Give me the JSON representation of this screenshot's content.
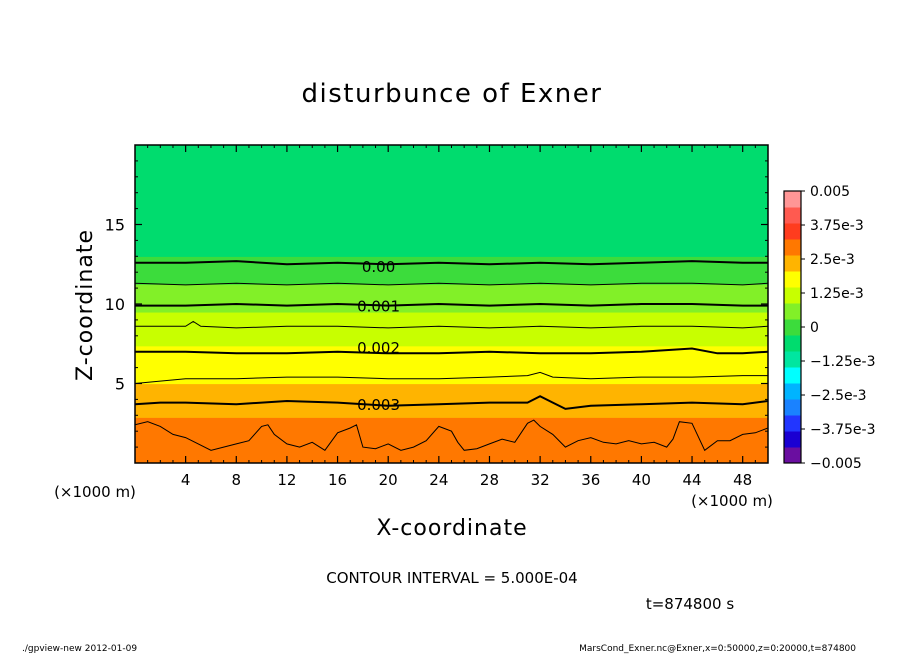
{
  "chart_data": {
    "type": "heatmap",
    "title": "disturbunce of Exner",
    "xlabel": "X-coordinate",
    "ylabel": "Z-coordinate",
    "x_unit_left": "(×1000 m)",
    "x_unit_right": "(×1000 m)",
    "xlim": [
      0,
      50
    ],
    "ylim": [
      0,
      20
    ],
    "x_ticks": [
      4,
      8,
      12,
      16,
      20,
      24,
      28,
      32,
      36,
      40,
      44,
      48
    ],
    "x_tick_labels": [
      "4",
      "8",
      "12",
      "16",
      "20",
      "24",
      "28",
      "32",
      "36",
      "40",
      "44",
      "48"
    ],
    "y_ticks": [
      5,
      10,
      15
    ],
    "y_tick_labels": [
      "5",
      "10",
      "15"
    ],
    "contour_interval_text": "CONTOUR INTERVAL = 5.000E-04",
    "time_text": "t=874800 s",
    "contour_labels": [
      {
        "text": "0.00",
        "x": 17.5,
        "z": 12.4
      },
      {
        "text": "0.001",
        "x": 17.5,
        "z": 9.9
      },
      {
        "text": "0.002",
        "x": 17.5,
        "z": 7.3
      },
      {
        "text": "0.003",
        "x": 17.5,
        "z": 3.7
      }
    ],
    "contours": [
      {
        "value": 0.0,
        "x": [
          0,
          4,
          8,
          12,
          16,
          20,
          24,
          28,
          32,
          36,
          40,
          44,
          48,
          50
        ],
        "z": [
          12.6,
          12.6,
          12.7,
          12.5,
          12.6,
          12.5,
          12.6,
          12.5,
          12.6,
          12.5,
          12.6,
          12.7,
          12.6,
          12.6
        ]
      },
      {
        "value": 0.0005,
        "x": [
          0,
          4,
          8,
          12,
          16,
          20,
          24,
          28,
          32,
          36,
          40,
          44,
          48,
          50
        ],
        "z": [
          11.3,
          11.2,
          11.3,
          11.2,
          11.3,
          11.2,
          11.3,
          11.2,
          11.3,
          11.2,
          11.3,
          11.3,
          11.2,
          11.3
        ]
      },
      {
        "value": 0.001,
        "x": [
          0,
          4,
          8,
          12,
          16,
          20,
          24,
          28,
          32,
          36,
          40,
          44,
          48,
          50
        ],
        "z": [
          9.9,
          9.9,
          10.0,
          9.9,
          10.0,
          9.9,
          10.0,
          9.9,
          10.0,
          9.9,
          10.0,
          10.0,
          9.9,
          9.9
        ]
      },
      {
        "value": 0.0015,
        "x": [
          0,
          4,
          4.6,
          5.2,
          8,
          12,
          16,
          20,
          24,
          28,
          32,
          36,
          40,
          44,
          48,
          50
        ],
        "z": [
          8.6,
          8.6,
          8.9,
          8.6,
          8.5,
          8.6,
          8.6,
          8.5,
          8.6,
          8.5,
          8.6,
          8.5,
          8.6,
          8.6,
          8.5,
          8.6
        ]
      },
      {
        "value": 0.002,
        "x": [
          0,
          4,
          8,
          12,
          16,
          20,
          24,
          28,
          32,
          36,
          40,
          44,
          46,
          48,
          50
        ],
        "z": [
          7.0,
          7.0,
          6.9,
          6.9,
          7.0,
          6.9,
          6.9,
          7.0,
          6.9,
          6.9,
          7.0,
          7.2,
          6.9,
          6.9,
          7.0
        ]
      },
      {
        "value": 0.0025,
        "x": [
          0,
          4,
          8,
          12,
          16,
          20,
          24,
          28,
          31,
          32,
          33,
          36,
          40,
          44,
          48,
          50
        ],
        "z": [
          5.0,
          5.3,
          5.3,
          5.4,
          5.4,
          5.3,
          5.3,
          5.4,
          5.5,
          5.7,
          5.4,
          5.3,
          5.4,
          5.4,
          5.5,
          5.5
        ]
      },
      {
        "value": 0.003,
        "x": [
          0,
          2,
          4,
          8,
          12,
          16,
          20,
          24,
          28,
          31,
          32,
          33,
          34,
          36,
          40,
          44,
          48,
          50
        ],
        "z": [
          3.7,
          3.8,
          3.8,
          3.7,
          3.9,
          3.8,
          3.6,
          3.7,
          3.8,
          3.8,
          4.2,
          3.8,
          3.4,
          3.6,
          3.7,
          3.8,
          3.7,
          3.9
        ]
      },
      {
        "value": 0.0035,
        "x": [
          0,
          1,
          2,
          3,
          4,
          5,
          6,
          7,
          8,
          9,
          10,
          10.5,
          11,
          12,
          13,
          14,
          15,
          16,
          17,
          17.5,
          18,
          19,
          20,
          21,
          22,
          23,
          24,
          25,
          25.5,
          26,
          27,
          28,
          29,
          30,
          31,
          31.5,
          32,
          33,
          34,
          35,
          36,
          37,
          38,
          39,
          40,
          41,
          42,
          42.5,
          43,
          44,
          45,
          46,
          47,
          48,
          49,
          50
        ],
        "z": [
          2.4,
          2.6,
          2.3,
          1.8,
          1.6,
          1.2,
          0.8,
          1.0,
          1.2,
          1.4,
          2.3,
          2.4,
          1.8,
          1.2,
          1.0,
          1.3,
          0.8,
          1.9,
          2.2,
          2.4,
          1.0,
          0.9,
          1.2,
          0.8,
          1.0,
          1.4,
          2.3,
          2.0,
          1.3,
          0.8,
          0.9,
          1.2,
          1.5,
          1.3,
          2.5,
          2.7,
          2.3,
          1.8,
          1.0,
          1.4,
          1.6,
          1.3,
          1.2,
          1.4,
          1.2,
          1.3,
          1.0,
          1.5,
          2.6,
          2.5,
          0.8,
          1.4,
          1.4,
          1.8,
          1.9,
          2.2
        ]
      }
    ],
    "colorbar": {
      "levels": [
        -0.005,
        -0.004375,
        -0.00375,
        -0.003125,
        -0.0025,
        -0.001875,
        -0.00125,
        -0.000625,
        0,
        0.000625,
        0.00125,
        0.001875,
        0.0025,
        0.003125,
        0.00375,
        0.004375,
        0.005
      ],
      "colors": [
        "#6a0ea0",
        "#1a00d2",
        "#2236ff",
        "#1a82ff",
        "#00b4ff",
        "#00ffff",
        "#00e6a0",
        "#00dc6e",
        "#3cdc3c",
        "#82f028",
        "#c8ff00",
        "#ffff00",
        "#ffb400",
        "#ff7800",
        "#ff3c1e",
        "#ff5a50",
        "#ff9696"
      ],
      "tick_labels": [
        "0.005",
        "3.75e-3",
        "2.5e-3",
        "1.25e-3",
        "0",
        "−1.25e-3",
        "−2.5e-3",
        "−3.75e-3",
        "−0.005"
      ],
      "tick_values": [
        0.005,
        0.00375,
        0.0025,
        0.00125,
        0,
        -0.00125,
        -0.0025,
        -0.00375,
        -0.005
      ]
    },
    "field_profile": {
      "z": [
        0,
        1,
        2,
        3,
        4,
        5,
        6,
        7,
        8,
        9,
        10,
        11,
        12,
        13,
        14,
        15,
        16,
        17,
        18,
        19,
        20
      ],
      "value": [
        0.0038,
        0.0036,
        0.0034,
        0.0031,
        0.0029,
        0.0025,
        0.0022,
        0.002,
        0.0017,
        0.0014,
        0.0011,
        0.0007,
        0.0004,
        0.0,
        -0.0002,
        -0.0003,
        -0.0004,
        -0.0005,
        -0.0005,
        -0.0005,
        -0.0005
      ]
    }
  },
  "footer": {
    "left": "./gpview-new   2012-01-09",
    "right": "MarsCond_Exner.nc@Exner,x=0:50000,z=0:20000,t=874800"
  }
}
